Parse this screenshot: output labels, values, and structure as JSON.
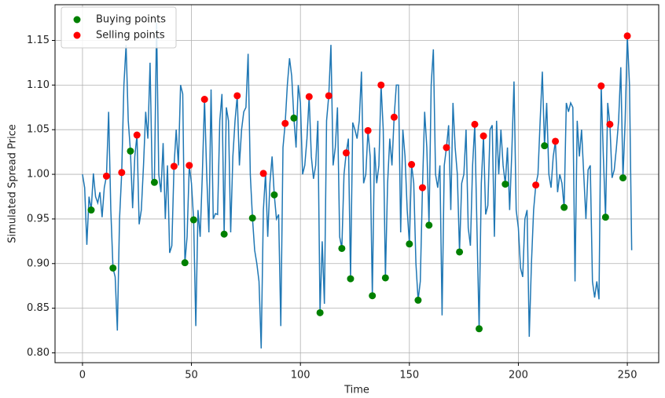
{
  "chart_data": {
    "type": "line",
    "xlabel": "Time",
    "ylabel": "Simulated Spread Price",
    "x": [
      0,
      1,
      2,
      3,
      4,
      5,
      6,
      7,
      8,
      9,
      10,
      11,
      12,
      13,
      14,
      15,
      16,
      17,
      18,
      19,
      20,
      21,
      22,
      23,
      24,
      25,
      26,
      27,
      28,
      29,
      30,
      31,
      32,
      33,
      34,
      35,
      36,
      37,
      38,
      39,
      40,
      41,
      42,
      43,
      44,
      45,
      46,
      47,
      48,
      49,
      50,
      51,
      52,
      53,
      54,
      55,
      56,
      57,
      58,
      59,
      60,
      61,
      62,
      63,
      64,
      65,
      66,
      67,
      68,
      69,
      70,
      71,
      72,
      73,
      74,
      75,
      76,
      77,
      78,
      79,
      80,
      81,
      82,
      83,
      84,
      85,
      86,
      87,
      88,
      89,
      90,
      91,
      92,
      93,
      94,
      95,
      96,
      97,
      98,
      99,
      100,
      101,
      102,
      103,
      104,
      105,
      106,
      107,
      108,
      109,
      110,
      111,
      112,
      113,
      114,
      115,
      116,
      117,
      118,
      119,
      120,
      121,
      122,
      123,
      124,
      125,
      126,
      127,
      128,
      129,
      130,
      131,
      132,
      133,
      134,
      135,
      136,
      137,
      138,
      139,
      140,
      141,
      142,
      143,
      144,
      145,
      146,
      147,
      148,
      149,
      150,
      151,
      152,
      153,
      154,
      155,
      156,
      157,
      158,
      159,
      160,
      161,
      162,
      163,
      164,
      165,
      166,
      167,
      168,
      169,
      170,
      171,
      172,
      173,
      174,
      175,
      176,
      177,
      178,
      179,
      180,
      181,
      182,
      183,
      184,
      185,
      186,
      187,
      188,
      189,
      190,
      191,
      192,
      193,
      194,
      195,
      196,
      197,
      198,
      199,
      200,
      201,
      202,
      203,
      204,
      205,
      206,
      207,
      208,
      209,
      210,
      211,
      212,
      213,
      214,
      215,
      216,
      217,
      218,
      219,
      220,
      221,
      222,
      223,
      224,
      225,
      226,
      227,
      228,
      229,
      230,
      231,
      232,
      233,
      234,
      235,
      236,
      237,
      238,
      239,
      240,
      241,
      242,
      243,
      244,
      245,
      246,
      247,
      248,
      249,
      250,
      251,
      252
    ],
    "series": [
      {
        "type": "line",
        "color": "#1f77b4",
        "values": [
          1.0,
          0.985,
          0.921,
          0.975,
          0.96,
          1.001,
          0.975,
          0.968,
          0.98,
          0.952,
          0.985,
          0.998,
          1.07,
          0.96,
          0.895,
          0.885,
          0.825,
          0.95,
          1.002,
          1.1,
          1.145,
          1.06,
          1.026,
          0.962,
          1.02,
          1.044,
          0.944,
          0.96,
          1.01,
          1.07,
          1.04,
          1.125,
          0.995,
          0.991,
          1.17,
          1.0,
          0.98,
          1.035,
          0.95,
          1.01,
          0.912,
          0.92,
          1.009,
          1.05,
          1.01,
          1.1,
          1.09,
          0.901,
          0.93,
          1.01,
          0.99,
          0.949,
          0.83,
          0.96,
          0.93,
          1.0,
          1.084,
          1.0,
          0.935,
          1.095,
          0.95,
          0.956,
          0.955,
          1.06,
          1.09,
          0.933,
          1.075,
          1.06,
          0.935,
          1.02,
          1.06,
          1.088,
          1.01,
          1.05,
          1.07,
          1.075,
          1.135,
          1.0,
          0.951,
          0.915,
          0.9,
          0.88,
          0.805,
          0.96,
          1.001,
          0.93,
          0.99,
          1.02,
          0.977,
          0.95,
          0.955,
          0.83,
          1.03,
          1.057,
          1.1,
          1.13,
          1.11,
          1.063,
          1.03,
          1.1,
          1.08,
          1.0,
          1.01,
          1.04,
          1.087,
          1.02,
          0.995,
          1.01,
          1.06,
          0.845,
          0.925,
          0.855,
          1.06,
          1.088,
          1.145,
          1.01,
          1.03,
          1.075,
          0.93,
          0.917,
          1.0,
          1.024,
          1.04,
          0.883,
          1.058,
          1.05,
          1.04,
          1.06,
          1.115,
          0.99,
          1.0,
          1.049,
          1.02,
          0.864,
          1.03,
          0.99,
          1.01,
          1.1,
          1.05,
          0.884,
          0.99,
          1.04,
          1.01,
          1.064,
          1.1,
          1.1,
          0.935,
          1.05,
          1.02,
          0.96,
          0.922,
          1.011,
          0.99,
          0.9,
          0.859,
          0.88,
          0.985,
          1.07,
          1.03,
          0.943,
          1.1,
          1.14,
          1.0,
          0.985,
          1.01,
          0.842,
          1.01,
          1.03,
          1.055,
          0.96,
          1.08,
          1.03,
          1.0,
          0.913,
          0.99,
          1.0,
          1.05,
          0.94,
          0.92,
          1.01,
          1.056,
          0.94,
          0.827,
          0.99,
          1.043,
          0.955,
          0.965,
          1.05,
          1.055,
          0.93,
          1.06,
          1.0,
          1.05,
          1.01,
          0.989,
          1.03,
          0.96,
          1.025,
          1.104,
          0.96,
          0.94,
          0.895,
          0.885,
          0.95,
          0.96,
          0.818,
          0.9,
          0.96,
          0.988,
          1.0,
          1.06,
          1.115,
          1.032,
          1.08,
          1.0,
          0.985,
          1.02,
          1.037,
          0.98,
          1.0,
          0.99,
          0.963,
          1.08,
          1.07,
          1.08,
          1.075,
          0.88,
          1.06,
          1.02,
          1.05,
          1.0,
          0.95,
          1.005,
          1.01,
          0.88,
          0.862,
          0.88,
          0.86,
          1.099,
          1.02,
          0.952,
          1.08,
          1.056,
          0.996,
          1.005,
          1.03,
          1.06,
          1.12,
          0.996,
          1.06,
          1.155,
          1.1,
          0.915
        ]
      },
      {
        "type": "scatter",
        "name": "Buying points",
        "color": "green",
        "x": [
          4,
          14,
          22,
          33,
          47,
          51,
          65,
          78,
          88,
          97,
          109,
          119,
          123,
          133,
          139,
          150,
          154,
          159,
          173,
          182,
          194,
          212,
          221,
          240,
          248
        ],
        "values": [
          0.96,
          0.895,
          1.026,
          0.991,
          0.901,
          0.949,
          0.933,
          0.951,
          0.977,
          1.063,
          0.845,
          0.917,
          0.883,
          0.864,
          0.884,
          0.922,
          0.859,
          0.943,
          0.913,
          0.827,
          0.989,
          1.032,
          0.963,
          0.952,
          0.996
        ]
      },
      {
        "type": "scatter",
        "name": "Selling points",
        "color": "red",
        "x": [
          11,
          18,
          25,
          42,
          49,
          56,
          71,
          83,
          93,
          104,
          113,
          121,
          131,
          137,
          143,
          151,
          156,
          167,
          180,
          184,
          208,
          217,
          238,
          242,
          250
        ],
        "values": [
          0.998,
          1.002,
          1.044,
          1.009,
          1.01,
          1.084,
          1.088,
          1.001,
          1.057,
          1.087,
          1.088,
          1.024,
          1.049,
          1.1,
          1.064,
          1.011,
          0.985,
          1.03,
          1.056,
          1.043,
          0.988,
          1.037,
          1.099,
          1.056,
          1.155
        ]
      }
    ],
    "xlim": [
      -12.6,
      264.4
    ],
    "ylim": [
      0.789,
      1.19
    ],
    "xticks": [
      0,
      50,
      100,
      150,
      200,
      250
    ],
    "yticks": [
      {
        "value": 0.8,
        "label": "0.80"
      },
      0.85,
      {
        "value": 0.9,
        "label": "0.90"
      },
      0.95,
      {
        "value": 1.0,
        "label": "1.00"
      },
      1.05,
      {
        "value": 1.1,
        "label": "1.10"
      },
      1.15
    ],
    "grid": true,
    "legend": "upper left"
  }
}
